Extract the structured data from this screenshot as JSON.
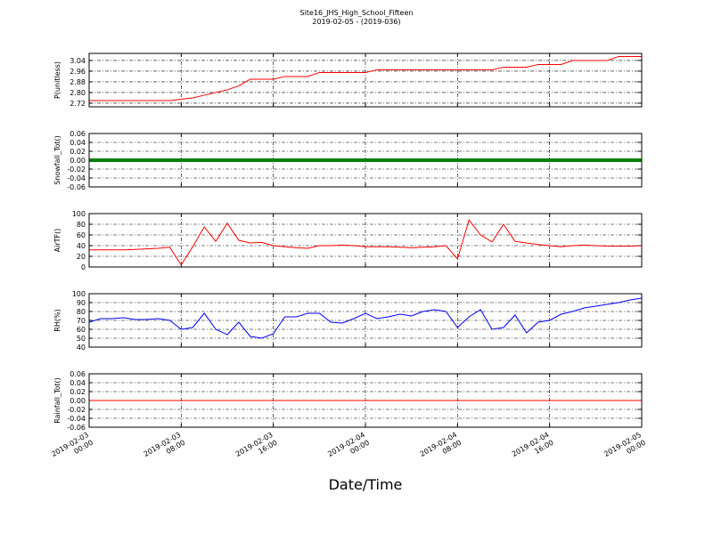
{
  "title": "Site16_JHS_High_School_Fifteen",
  "subtitle": "2019-02-05 - (2019-036)",
  "x_label": "Date/Time",
  "xlim": [
    "2019-02-03 00:00",
    "2019-02-05 00:00"
  ],
  "xticks": [
    "2019-02-03 00:00",
    "2019-02-03 08:00",
    "2019-02-03 16:00",
    "2019-02-04 00:00",
    "2019-02-04 08:00",
    "2019-02-04 16:00",
    "2019-02-05 00:00"
  ],
  "x": [
    "2019-02-03 00:00",
    "2019-02-03 01:00",
    "2019-02-03 02:00",
    "2019-02-03 03:00",
    "2019-02-03 04:00",
    "2019-02-03 05:00",
    "2019-02-03 06:00",
    "2019-02-03 07:00",
    "2019-02-03 08:00",
    "2019-02-03 09:00",
    "2019-02-03 10:00",
    "2019-02-03 11:00",
    "2019-02-03 12:00",
    "2019-02-03 13:00",
    "2019-02-03 14:00",
    "2019-02-03 15:00",
    "2019-02-03 16:00",
    "2019-02-03 17:00",
    "2019-02-03 18:00",
    "2019-02-03 19:00",
    "2019-02-03 20:00",
    "2019-02-03 21:00",
    "2019-02-03 22:00",
    "2019-02-03 23:00",
    "2019-02-04 00:00",
    "2019-02-04 01:00",
    "2019-02-04 02:00",
    "2019-02-04 03:00",
    "2019-02-04 04:00",
    "2019-02-04 05:00",
    "2019-02-04 06:00",
    "2019-02-04 07:00",
    "2019-02-04 08:00",
    "2019-02-04 09:00",
    "2019-02-04 10:00",
    "2019-02-04 11:00",
    "2019-02-04 12:00",
    "2019-02-04 13:00",
    "2019-02-04 14:00",
    "2019-02-04 15:00",
    "2019-02-04 16:00",
    "2019-02-04 17:00",
    "2019-02-04 18:00",
    "2019-02-04 19:00",
    "2019-02-04 20:00",
    "2019-02-04 21:00",
    "2019-02-04 22:00",
    "2019-02-04 23:00",
    "2019-02-05 00:00"
  ],
  "chart_data": [
    {
      "type": "line",
      "y_label": "P(unitless)",
      "ylim": [
        2.693,
        3.093
      ],
      "yticks": [
        2.72,
        {
          "value": 2.8,
          "label": "2.80"
        },
        2.88,
        2.96,
        3.04
      ],
      "grid": true,
      "series": [
        {
          "color": "#ff0000",
          "width": 1,
          "values": [
            2.74,
            2.74,
            2.74,
            2.74,
            2.74,
            2.74,
            2.74,
            2.74,
            2.75,
            2.76,
            2.78,
            2.8,
            2.82,
            2.85,
            2.9,
            2.9,
            2.9,
            2.92,
            2.92,
            2.92,
            2.95,
            2.95,
            2.95,
            2.95,
            2.95,
            2.97,
            2.97,
            2.97,
            2.97,
            2.97,
            2.97,
            2.97,
            2.97,
            2.97,
            2.97,
            2.97,
            2.99,
            2.99,
            2.99,
            3.01,
            3.01,
            3.01,
            3.04,
            3.04,
            3.04,
            3.04,
            3.07,
            3.07,
            3.07
          ]
        }
      ]
    },
    {
      "type": "line",
      "y_label": "Snowfall_Tot()",
      "ylim": [
        -0.06,
        0.06
      ],
      "yticks": [
        -0.06,
        -0.04,
        -0.02,
        {
          "value": 0,
          "label": "0.00"
        },
        0.02,
        0.04,
        0.06
      ],
      "grid": true,
      "series": [
        {
          "color": "#008000",
          "width": 4,
          "values": [
            0,
            0,
            0,
            0,
            0,
            0,
            0,
            0,
            0,
            0,
            0,
            0,
            0,
            0,
            0,
            0,
            0,
            0,
            0,
            0,
            0,
            0,
            0,
            0,
            0,
            0,
            0,
            0,
            0,
            0,
            0,
            0,
            0,
            0,
            0,
            0,
            0,
            0,
            0,
            0,
            0,
            0,
            0,
            0,
            0,
            0,
            0,
            0,
            0
          ]
        }
      ]
    },
    {
      "type": "line",
      "y_label": "AirTF()",
      "ylim": [
        0,
        100
      ],
      "yticks": [
        0,
        20,
        40,
        60,
        80,
        100
      ],
      "grid": true,
      "series": [
        {
          "color": "#ff0000",
          "width": 1,
          "values": [
            32,
            32,
            32,
            32,
            33,
            34,
            35,
            37,
            4,
            38,
            75,
            48,
            82,
            50,
            45,
            46,
            40,
            38,
            36,
            35,
            40,
            40,
            41,
            40,
            38,
            38,
            38,
            37,
            36,
            37,
            38,
            40,
            15,
            88,
            60,
            47,
            80,
            48,
            45,
            42,
            40,
            38,
            40,
            41,
            40,
            39,
            39,
            39,
            40
          ]
        }
      ]
    },
    {
      "type": "line",
      "y_label": "RH(%)",
      "ylim": [
        40,
        100
      ],
      "yticks": [
        40,
        50,
        60,
        70,
        80,
        90,
        100
      ],
      "grid": true,
      "series": [
        {
          "color": "#0000ff",
          "width": 1,
          "values": [
            68,
            72,
            72,
            73,
            71,
            71,
            72,
            70,
            60,
            62,
            78,
            60,
            54,
            68,
            52,
            50,
            55,
            74,
            74,
            78,
            78,
            68,
            67,
            72,
            78,
            72,
            74,
            77,
            75,
            80,
            82,
            80,
            62,
            74,
            82,
            60,
            62,
            76,
            56,
            68,
            70,
            77,
            80,
            84,
            86,
            88,
            90,
            93,
            95
          ]
        }
      ]
    },
    {
      "type": "line",
      "y_label": "Rainfall_Tot()",
      "ylim": [
        -0.06,
        0.06
      ],
      "yticks": [
        -0.06,
        -0.04,
        -0.02,
        {
          "value": 0,
          "label": "0.00"
        },
        0.02,
        0.04,
        0.06
      ],
      "grid": true,
      "series": [
        {
          "color": "#ff0000",
          "width": 1,
          "values": [
            0,
            0,
            0,
            0,
            0,
            0,
            0,
            0,
            0,
            0,
            0,
            0,
            0,
            0,
            0,
            0,
            0,
            0,
            0,
            0,
            0,
            0,
            0,
            0,
            0,
            0,
            0,
            0,
            0,
            0,
            0,
            0,
            0,
            0,
            0,
            0,
            0,
            0,
            0,
            0,
            0,
            0,
            0,
            0,
            0,
            0,
            0,
            0,
            0
          ]
        }
      ]
    }
  ]
}
